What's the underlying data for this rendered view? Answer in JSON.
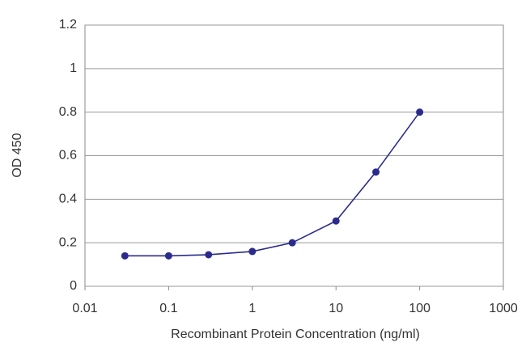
{
  "chart_data": {
    "type": "line",
    "x_label": "Recombinant Protein Concentration (ng/ml)",
    "y_label": "OD 450",
    "x": [
      0.03,
      0.1,
      0.3,
      1,
      3,
      10,
      30,
      100
    ],
    "values": [
      0.14,
      0.14,
      0.145,
      0.16,
      0.2,
      0.3,
      0.525,
      0.8
    ],
    "color": "#2b2b8c",
    "xscale": "log",
    "xlim": [
      0.01,
      1000
    ],
    "xticks": [
      0.01,
      0.1,
      1,
      10,
      100,
      1000
    ],
    "ylim": [
      0,
      1.2
    ],
    "yticks": [
      0,
      0.2,
      0.4,
      0.6,
      0.8,
      1,
      1.2
    ],
    "grid": true
  }
}
